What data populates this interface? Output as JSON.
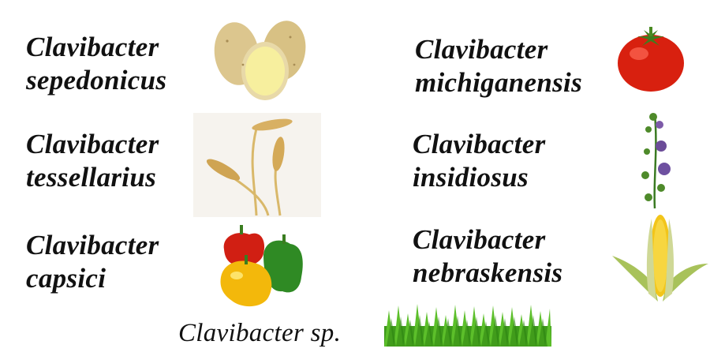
{
  "entries": [
    {
      "genus": "Clavibacter",
      "species": "sepedonicus",
      "host_icon": "potato-icon"
    },
    {
      "genus": "Clavibacter",
      "species": "michiganensis",
      "host_icon": "tomato-icon"
    },
    {
      "genus": "Clavibacter",
      "species": "tessellarius",
      "host_icon": "wheat-icon"
    },
    {
      "genus": "Clavibacter",
      "species": "insidiosus",
      "host_icon": "alfalfa-icon"
    },
    {
      "genus": "Clavibacter",
      "species": "capsici",
      "host_icon": "pepper-icon"
    },
    {
      "genus": "Clavibacter",
      "species": "nebraskensis",
      "host_icon": "corn-icon"
    }
  ],
  "footer": {
    "label": "Clavibacter sp.",
    "host_icon": "grass-icon"
  }
}
